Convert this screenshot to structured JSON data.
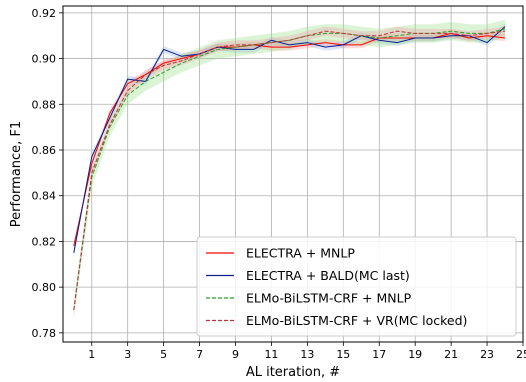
{
  "chart_data": {
    "type": "line",
    "title": "",
    "xlabel": "AL iteration, #",
    "ylabel": "Performance, F1",
    "xlim": [
      -0.6,
      25.0
    ],
    "ylim": [
      0.776,
      0.923
    ],
    "xticks": [
      1,
      3,
      5,
      7,
      9,
      11,
      13,
      15,
      17,
      19,
      21,
      23,
      25
    ],
    "yticks": [
      0.78,
      0.8,
      0.82,
      0.84,
      0.86,
      0.88,
      0.9,
      0.92
    ],
    "ytick_labels": [
      "0.78",
      "0.80",
      "0.82",
      "0.84",
      "0.86",
      "0.88",
      "0.90",
      "0.92"
    ],
    "grid": true,
    "legend_position": "lower-right",
    "x": [
      0,
      1,
      2,
      3,
      4,
      5,
      6,
      7,
      8,
      9,
      10,
      11,
      12,
      13,
      14,
      15,
      16,
      17,
      18,
      19,
      20,
      21,
      22,
      23,
      24
    ],
    "series": [
      {
        "name": "ELECTRA + MNLP",
        "color": "#ff0000",
        "dash": "solid",
        "band_color": "#ff9999",
        "band": 0.0015,
        "values": [
          0.818,
          0.854,
          0.876,
          0.889,
          0.893,
          0.898,
          0.9,
          0.902,
          0.905,
          0.905,
          0.906,
          0.905,
          0.905,
          0.906,
          0.907,
          0.906,
          0.906,
          0.909,
          0.909,
          0.909,
          0.909,
          0.911,
          0.909,
          0.91,
          0.909
        ]
      },
      {
        "name": "ELECTRA + BALD(MC last)",
        "color": "#0a1f8c",
        "dash": "solid",
        "band_color": "#9ab8e8",
        "band": 0.0015,
        "values": [
          0.815,
          0.857,
          0.874,
          0.891,
          0.89,
          0.904,
          0.901,
          0.902,
          0.905,
          0.904,
          0.904,
          0.908,
          0.906,
          0.907,
          0.905,
          0.906,
          0.91,
          0.908,
          0.907,
          0.909,
          0.909,
          0.91,
          0.91,
          0.907,
          0.914
        ]
      },
      {
        "name": "ELMo-BiLSTM-CRF + MNLP",
        "color": "#2ca02c",
        "dash": "dashed",
        "band_color": "#98df8a",
        "band": 0.004,
        "values": [
          0.79,
          0.848,
          0.87,
          0.884,
          0.89,
          0.894,
          0.898,
          0.901,
          0.904,
          0.905,
          0.906,
          0.907,
          0.908,
          0.91,
          0.911,
          0.911,
          0.91,
          0.909,
          0.91,
          0.911,
          0.911,
          0.912,
          0.911,
          0.911,
          0.913
        ]
      },
      {
        "name": "ELMo-BiLSTM-CRF + VR(MC locked)",
        "color": "#c0333a",
        "dash": "dashed",
        "band_color": "#f0a0a8",
        "band": 0.002,
        "values": [
          0.79,
          0.85,
          0.871,
          0.886,
          0.893,
          0.897,
          0.899,
          0.902,
          0.905,
          0.906,
          0.906,
          0.907,
          0.908,
          0.91,
          0.912,
          0.911,
          0.91,
          0.91,
          0.912,
          0.911,
          0.911,
          0.911,
          0.91,
          0.911,
          0.912
        ]
      }
    ]
  }
}
